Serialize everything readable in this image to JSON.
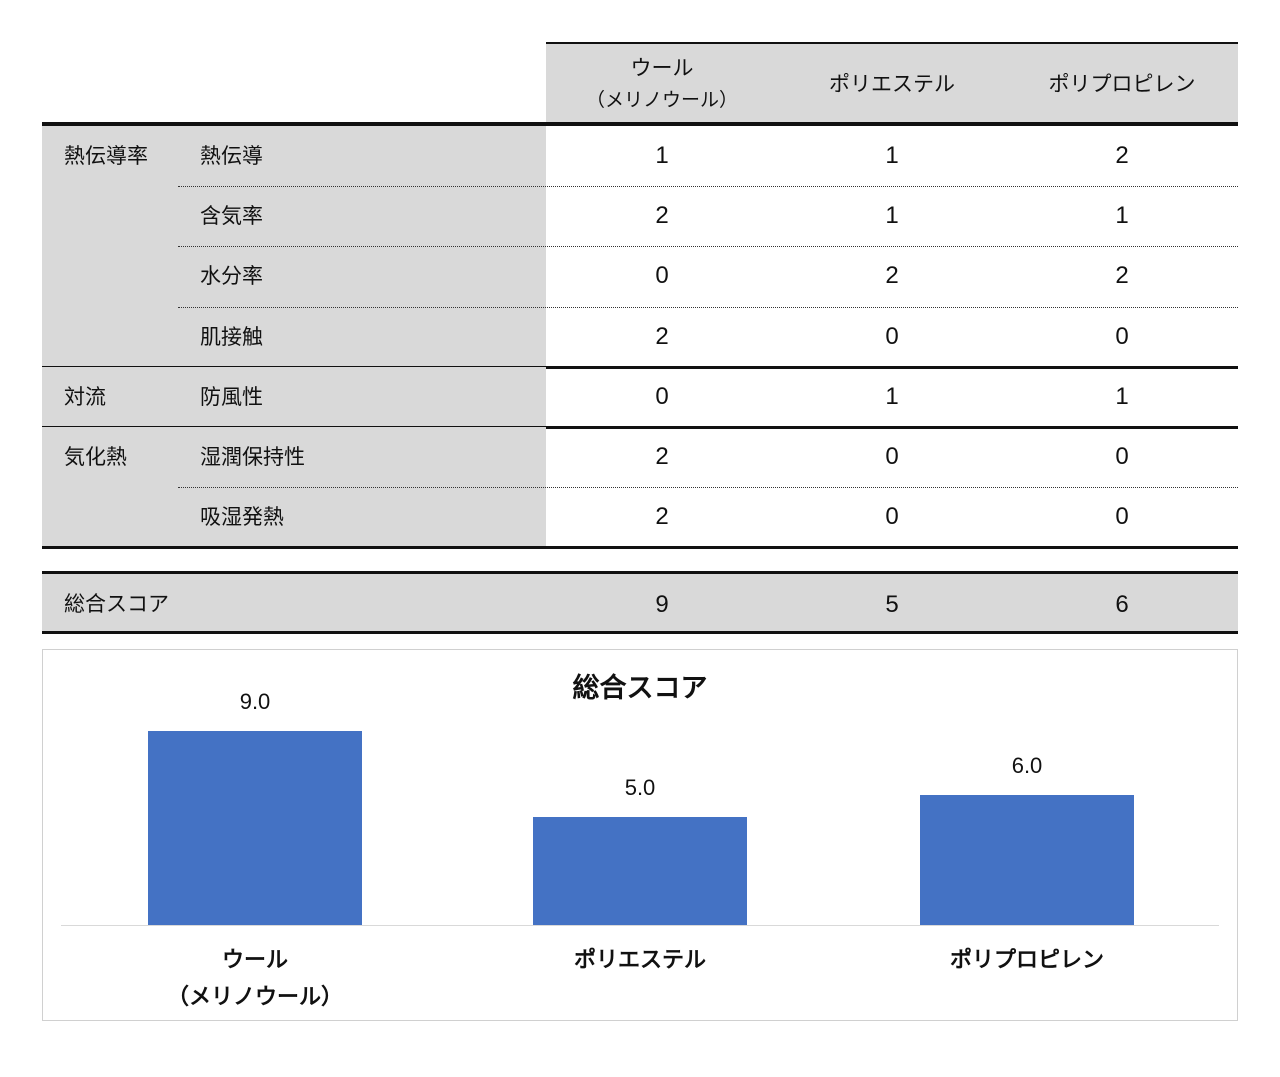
{
  "table": {
    "columns": [
      {
        "line1": "ウール",
        "line2": "（メリノウール）"
      },
      {
        "line1": "ポリエステル",
        "line2": ""
      },
      {
        "line1": "ポリプロピレン",
        "line2": ""
      }
    ],
    "groups": [
      {
        "label": "熱伝導率",
        "rows": [
          {
            "label": "熱伝導",
            "values": [
              "1",
              "1",
              "2"
            ]
          },
          {
            "label": "含気率",
            "values": [
              "2",
              "1",
              "1"
            ]
          },
          {
            "label": "水分率",
            "values": [
              "0",
              "2",
              "2"
            ]
          },
          {
            "label": "肌接触",
            "values": [
              "2",
              "0",
              "0"
            ]
          }
        ]
      },
      {
        "label": "対流",
        "rows": [
          {
            "label": "防風性",
            "values": [
              "0",
              "1",
              "1"
            ]
          }
        ]
      },
      {
        "label": "気化熱",
        "rows": [
          {
            "label": "湿潤保持性",
            "values": [
              "2",
              "0",
              "0"
            ]
          },
          {
            "label": "吸湿発熱",
            "values": [
              "2",
              "0",
              "0"
            ]
          }
        ]
      }
    ],
    "total": {
      "label": "総合スコア",
      "values": [
        "9",
        "5",
        "6"
      ]
    }
  },
  "chart_data": {
    "type": "bar",
    "title": "総合スコア",
    "categories": [
      [
        "ウール",
        "（メリノウール）"
      ],
      [
        "ポリエステル"
      ],
      [
        "ポリプロピレン"
      ]
    ],
    "values": [
      9,
      5,
      6
    ],
    "data_labels": [
      "9.0",
      "5.0",
      "6.0"
    ],
    "ylim": [
      0,
      10
    ],
    "grid": false,
    "legend": "none",
    "bar_color": "#4472c4"
  }
}
